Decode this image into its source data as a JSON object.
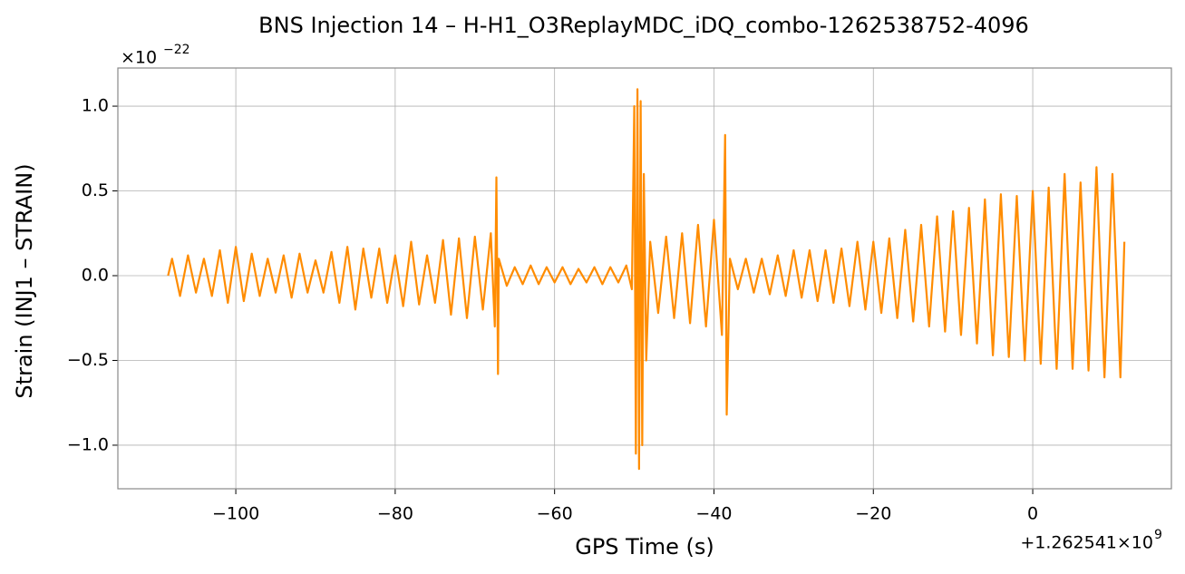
{
  "chart_data": {
    "type": "line",
    "title": "BNS Injection 14 – H-H1_O3ReplayMDC_iDQ_combo-1262538752-4096",
    "xlabel": "GPS Time (s)",
    "ylabel": "Strain (INJ1 – STRAIN)",
    "x_offset_label": "+1.262541×10",
    "x_offset_exponent": "9",
    "y_offset_label": "×10",
    "y_offset_exponent": "−22",
    "color": "#ff8c00",
    "grid": true,
    "xlim": [
      -114.8,
      17.4
    ],
    "ylim": [
      -1.257,
      1.225
    ],
    "xticks": [
      {
        "value": -100,
        "label": "−100"
      },
      {
        "value": -80,
        "label": "−80"
      },
      {
        "value": -60,
        "label": "−60"
      },
      {
        "value": -40,
        "label": "−40"
      },
      {
        "value": -20,
        "label": "−20"
      },
      0
    ],
    "yticks": [
      {
        "value": -1.0,
        "label": "−1.0"
      },
      {
        "value": -0.5,
        "label": "−0.5"
      },
      {
        "value": 0.0,
        "label": "0.0"
      },
      {
        "value": 0.5,
        "label": "0.5"
      },
      {
        "value": 1.0,
        "label": "1.0"
      }
    ],
    "x": [
      -108.5,
      -108,
      -107,
      -106,
      -105,
      -104,
      -103,
      -102,
      -101,
      -100,
      -99,
      -98,
      -97,
      -96,
      -95,
      -94,
      -93,
      -92,
      -91,
      -90,
      -89,
      -88,
      -87,
      -86,
      -85,
      -84,
      -83,
      -82,
      -81,
      -80,
      -79,
      -78,
      -77,
      -76,
      -75,
      -74,
      -73,
      -72,
      -71,
      -70,
      -69,
      -68,
      -67.5,
      -67.3,
      -67.1,
      -67,
      -66,
      -65,
      -64,
      -63,
      -62,
      -61,
      -60,
      -59,
      -58,
      -57,
      -56,
      -55,
      -54,
      -53,
      -52,
      -51,
      -50.3,
      -50,
      -49.8,
      -49.6,
      -49.4,
      -49.2,
      -49,
      -48.8,
      -48.5,
      -48,
      -47,
      -46,
      -45,
      -44,
      -43,
      -42,
      -41,
      -40,
      -39,
      -38.6,
      -38.4,
      -38,
      -37,
      -36,
      -35,
      -34,
      -33,
      -32,
      -31,
      -30,
      -29,
      -28,
      -27,
      -26,
      -25,
      -24,
      -23,
      -22,
      -21,
      -20,
      -19,
      -18,
      -17,
      -16,
      -15,
      -14,
      -13,
      -12,
      -11,
      -10,
      -9,
      -8,
      -7,
      -6,
      -5,
      -4,
      -3,
      -2,
      -1,
      0,
      1,
      2,
      3,
      4,
      5,
      6,
      7,
      8,
      9,
      10,
      11,
      11.5
    ],
    "values": [
      0.0,
      0.1,
      -0.12,
      0.12,
      -0.1,
      0.1,
      -0.12,
      0.15,
      -0.16,
      0.17,
      -0.15,
      0.13,
      -0.12,
      0.1,
      -0.1,
      0.12,
      -0.13,
      0.13,
      -0.1,
      0.09,
      -0.1,
      0.14,
      -0.16,
      0.17,
      -0.2,
      0.16,
      -0.13,
      0.16,
      -0.16,
      0.12,
      -0.18,
      0.2,
      -0.17,
      0.12,
      -0.16,
      0.21,
      -0.23,
      0.22,
      -0.25,
      0.23,
      -0.2,
      0.25,
      -0.3,
      0.58,
      -0.58,
      0.1,
      -0.06,
      0.05,
      -0.05,
      0.06,
      -0.05,
      0.05,
      -0.04,
      0.05,
      -0.05,
      0.04,
      -0.04,
      0.05,
      -0.05,
      0.05,
      -0.04,
      0.06,
      -0.08,
      1.0,
      -1.05,
      1.1,
      -1.14,
      1.03,
      -1.0,
      0.6,
      -0.5,
      0.2,
      -0.22,
      0.23,
      -0.25,
      0.25,
      -0.28,
      0.3,
      -0.3,
      0.33,
      -0.35,
      0.83,
      -0.82,
      0.1,
      -0.08,
      0.1,
      -0.1,
      0.1,
      -0.11,
      0.12,
      -0.12,
      0.15,
      -0.13,
      0.15,
      -0.15,
      0.15,
      -0.16,
      0.16,
      -0.18,
      0.2,
      -0.2,
      0.2,
      -0.22,
      0.22,
      -0.25,
      0.27,
      -0.27,
      0.3,
      -0.3,
      0.35,
      -0.33,
      0.38,
      -0.35,
      0.4,
      -0.4,
      0.45,
      -0.47,
      0.48,
      -0.48,
      0.47,
      -0.5,
      0.5,
      -0.52,
      0.52,
      -0.55,
      0.6,
      -0.55,
      0.55,
      -0.56,
      0.64,
      -0.6,
      0.6,
      -0.6,
      0.2
    ]
  }
}
